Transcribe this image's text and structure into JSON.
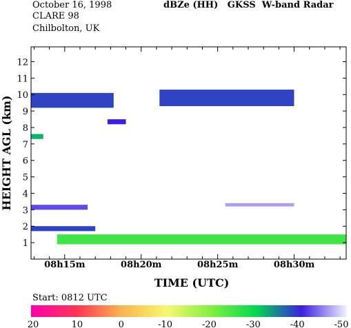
{
  "header": {
    "date": "October 16, 1998",
    "campaign": "CLARE 98",
    "location": "Chilbolton, UK",
    "title": "dBZe (HH)   GKSS  W-band Radar"
  },
  "footer": {
    "start_label": "Start: 0812 UTC"
  },
  "chart_data": {
    "type": "heatmap",
    "title": "dBZe (HH)   GKSS  W-band Radar",
    "xlabel": "TIME (UTC)",
    "ylabel": "HEIGHT AGL (km)",
    "xlim": [
      "08h12.8m",
      "08h33.4m"
    ],
    "xlim_minutes": [
      12.8,
      33.4
    ],
    "ylim": [
      0,
      12.9
    ],
    "x_ticks": [
      {
        "label": "08h15m",
        "value": 15
      },
      {
        "label": "08h20m",
        "value": 20
      },
      {
        "label": "08h25m",
        "value": 25
      },
      {
        "label": "08h30m",
        "value": 30
      }
    ],
    "y_ticks": [
      1,
      2,
      3,
      4,
      5,
      6,
      7,
      8,
      9,
      10,
      11,
      12
    ],
    "colorbar": {
      "unit": "dBZe",
      "ticks": [
        20,
        10,
        0,
        -10,
        -20,
        -30,
        -40,
        -50
      ],
      "stops": [
        {
          "value": 20,
          "color": "#ff00aa"
        },
        {
          "value": 10,
          "color": "#ff3355"
        },
        {
          "value": 0,
          "color": "#f8b450"
        },
        {
          "value": -10,
          "color": "#f8f870"
        },
        {
          "value": -20,
          "color": "#80f040"
        },
        {
          "value": -30,
          "color": "#00d850"
        },
        {
          "value": -40,
          "color": "#3c1ee0"
        },
        {
          "value": -50,
          "color": "#f0f4ff"
        }
      ]
    },
    "echo_layers": [
      {
        "feature": "upper cloud layer (left)",
        "time_start": 12.8,
        "time_end": 18.2,
        "height_bottom": 9.2,
        "height_top": 10.1,
        "dbz": -38
      },
      {
        "feature": "upper cloud layer (right)",
        "time_start": 21.2,
        "time_end": 30.0,
        "height_bottom": 9.3,
        "height_top": 10.3,
        "dbz": -38
      },
      {
        "feature": "isolated echo",
        "time_start": 17.8,
        "time_end": 19.0,
        "height_bottom": 8.2,
        "height_top": 8.5,
        "dbz": -40
      },
      {
        "feature": "isolated echo",
        "time_start": 12.8,
        "time_end": 13.6,
        "height_bottom": 7.3,
        "height_top": 7.6,
        "dbz": -32
      },
      {
        "feature": "low layer",
        "time_start": 12.8,
        "time_end": 16.5,
        "height_bottom": 3.0,
        "height_top": 3.3,
        "dbz": -42
      },
      {
        "feature": "low layer",
        "time_start": 25.5,
        "time_end": 30.0,
        "height_bottom": 3.2,
        "height_top": 3.4,
        "dbz": -46
      },
      {
        "feature": "low layer",
        "time_start": 12.8,
        "time_end": 17.0,
        "height_bottom": 1.7,
        "height_top": 2.0,
        "dbz": -38
      },
      {
        "feature": "boundary layer",
        "time_start": 14.5,
        "time_end": 33.4,
        "height_bottom": 0.9,
        "height_top": 1.5,
        "dbz": -25
      }
    ]
  }
}
